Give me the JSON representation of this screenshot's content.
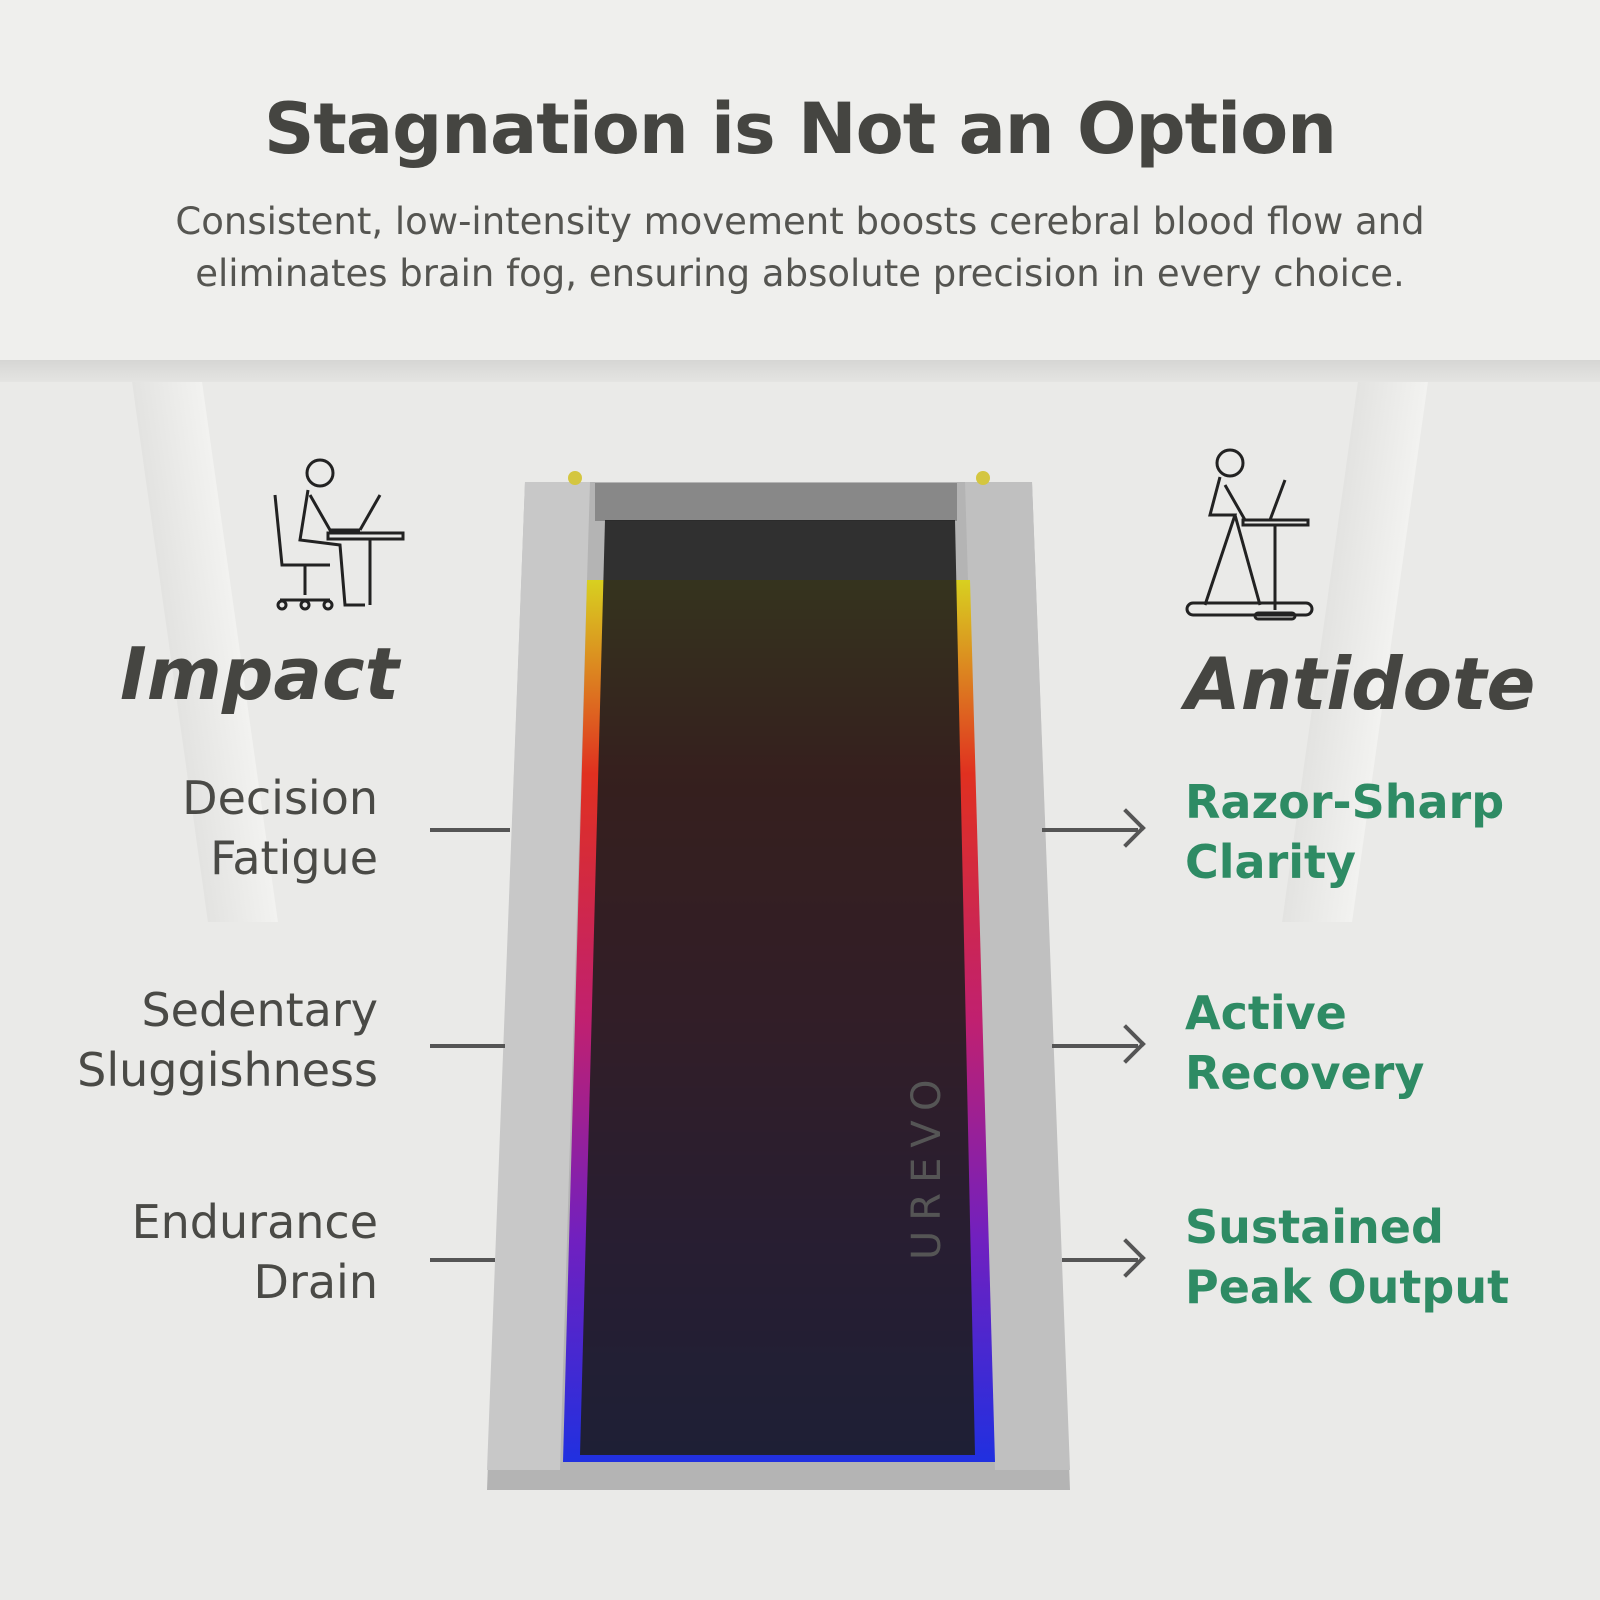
{
  "header": {
    "title": "Stagnation is Not an Option",
    "subtitle_line1": "Consistent, low-intensity movement boosts cerebral blood flow and",
    "subtitle_line2": "eliminates brain fog, ensuring absolute precision in every choice."
  },
  "impact": {
    "heading": "Impact",
    "icon": "sitting-at-desk-icon",
    "items": [
      [
        "Decision",
        "Fatigue"
      ],
      [
        "Sedentary",
        "Sluggishness"
      ],
      [
        "Endurance",
        "Drain"
      ]
    ]
  },
  "antidote": {
    "heading": "Antidote",
    "icon": "walking-treadmill-desk-icon",
    "items": [
      [
        "Razor-Sharp",
        "Clarity"
      ],
      [
        "Active",
        "Recovery"
      ],
      [
        "Sustained",
        "Peak Output"
      ]
    ]
  },
  "product": {
    "brand": "UREVO"
  },
  "colors": {
    "accent": "#2e8b64",
    "text": "#454541"
  }
}
